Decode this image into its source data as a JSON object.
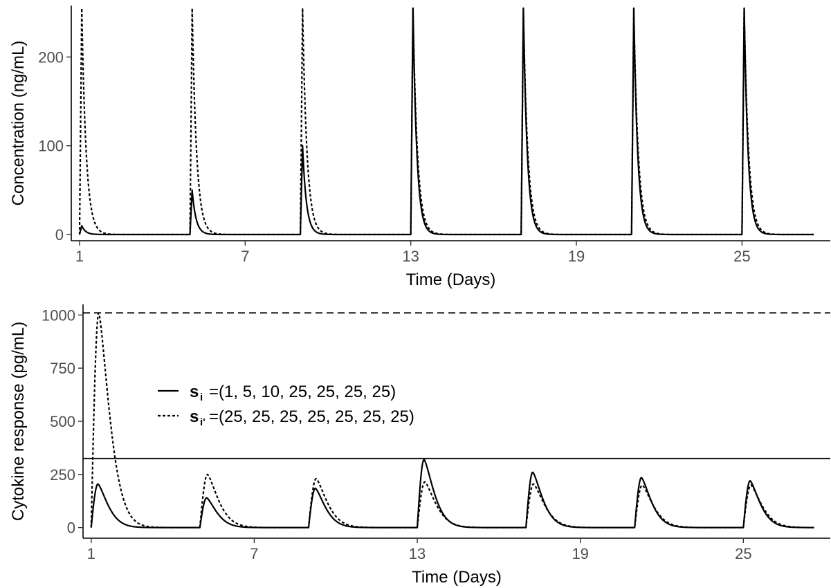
{
  "chart_data": [
    {
      "type": "line",
      "title": "",
      "xlabel": "Time (Days)",
      "ylabel": "Concentration (ng/mL)",
      "xlim": [
        0.7,
        28.2
      ],
      "ylim": [
        -7,
        258
      ],
      "x_ticks": [
        1,
        7,
        13,
        19,
        25
      ],
      "x_tick_labels": [
        "1",
        "7",
        "13",
        "19",
        "25"
      ],
      "y_ticks": [
        0,
        100,
        200
      ],
      "y_tick_labels": [
        "0",
        "100",
        "200"
      ],
      "grid": false,
      "dose_days": [
        1,
        5,
        9,
        13,
        17,
        21,
        25
      ],
      "series": [
        {
          "style": "solid",
          "peak_values": [
            10,
            50,
            100,
            255,
            255,
            255,
            255
          ]
        },
        {
          "style": "dotted",
          "peak_values": [
            255,
            255,
            255,
            255,
            255,
            255,
            255
          ]
        }
      ]
    },
    {
      "type": "line",
      "title": "",
      "xlabel": "Time (Days)",
      "ylabel": "Cytokine response (pg/mL)",
      "xlim": [
        0.7,
        28.2
      ],
      "ylim": [
        -50,
        1050
      ],
      "x_ticks": [
        1,
        7,
        13,
        19,
        25
      ],
      "x_tick_labels": [
        "1",
        "7",
        "13",
        "19",
        "25"
      ],
      "y_ticks": [
        0,
        250,
        500,
        750,
        1000
      ],
      "y_tick_labels": [
        "0",
        "250",
        "500",
        "750",
        "1000"
      ],
      "grid": false,
      "dose_days": [
        1,
        5,
        9,
        13,
        17,
        21,
        25
      ],
      "reference_lines": [
        {
          "style": "dashed",
          "y": 1010
        },
        {
          "style": "solid",
          "y": 325
        }
      ],
      "legend": {
        "placement": "upper-left",
        "entries": [
          {
            "style": "solid",
            "symbol": "s",
            "subscript": "i",
            "text": "=(1, 5, 10, 25, 25, 25, 25)"
          },
          {
            "style": "dotted",
            "symbol": "s",
            "subscript": "i'",
            "text": "=(25, 25, 25, 25, 25, 25, 25)"
          }
        ]
      },
      "series": [
        {
          "style": "solid",
          "peak_values": [
            205,
            140,
            185,
            320,
            260,
            235,
            220
          ]
        },
        {
          "style": "dotted",
          "peak_values": [
            1010,
            250,
            230,
            215,
            205,
            200,
            200
          ]
        }
      ]
    }
  ]
}
